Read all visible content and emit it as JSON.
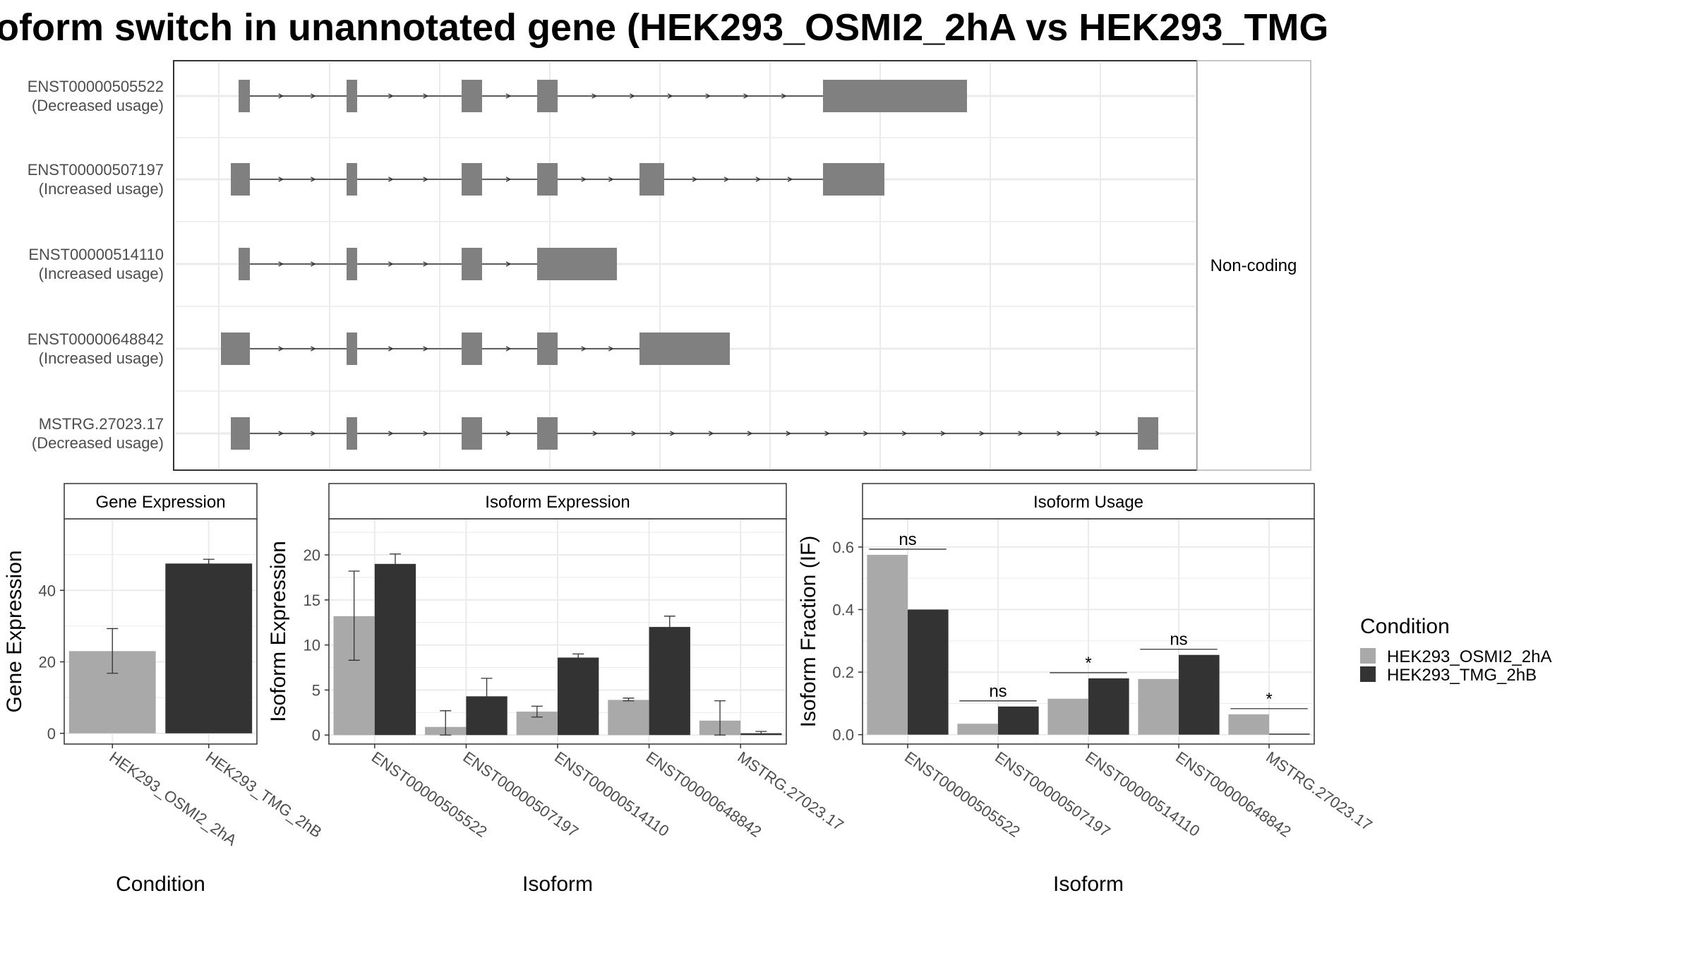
{
  "title": "oform switch in unannotated gene (HEK293_OSMI2_2hA vs HEK293_TMG",
  "colors": {
    "exon": "#808080",
    "cond1": "#a9a9a9",
    "cond2": "#333333",
    "grid": "#ebebeb",
    "strip_bg": "#ffffff"
  },
  "chart_data": [
    {
      "type": "gene-structure",
      "coding_label": "Non-coding",
      "transcripts": [
        {
          "id": "ENST00000505522",
          "usage": "(Decreased usage)"
        },
        {
          "id": "ENST00000507197",
          "usage": "(Increased usage)"
        },
        {
          "id": "ENST00000514110",
          "usage": "(Increased usage)"
        },
        {
          "id": "ENST00000648842",
          "usage": "(Increased usage)"
        },
        {
          "id": "MSTRG.27023.17",
          "usage": "(Decreased usage)"
        }
      ]
    },
    {
      "type": "bar",
      "title": "Gene Expression",
      "xlabel": "Condition",
      "ylabel": "Gene Expression",
      "ylim": [
        -3,
        60
      ],
      "yticks": [
        "0",
        "20",
        "40"
      ],
      "categories": [
        "HEK293_OSMI2_2hA",
        "HEK293_TMG_2hB"
      ],
      "values": [
        23,
        47.5
      ],
      "errors": [
        [
          16.8,
          29.3
        ],
        [
          46.3,
          48.7
        ]
      ]
    },
    {
      "type": "bar",
      "title": "Isoform Expression",
      "xlabel": "Isoform",
      "ylabel": "Isoform Expression",
      "ylim": [
        -1,
        24
      ],
      "yticks": [
        "0",
        "5",
        "10",
        "15",
        "20"
      ],
      "categories": [
        "ENST00000505522",
        "ENST00000507197",
        "ENST00000514110",
        "ENST00000648842",
        "MSTRG.27023.17"
      ],
      "series": [
        {
          "name": "HEK293_OSMI2_2hA",
          "values": [
            13.2,
            0.9,
            2.6,
            3.9,
            1.6
          ],
          "errors": [
            [
              8.3,
              18.2
            ],
            [
              0,
              2.7
            ],
            [
              2.0,
              3.2
            ],
            [
              3.8,
              4.1
            ],
            [
              0,
              3.8
            ]
          ]
        },
        {
          "name": "HEK293_TMG_2hB",
          "values": [
            19.0,
            4.3,
            8.6,
            12.0,
            0.2
          ],
          "errors": [
            [
              17.9,
              20.1
            ],
            [
              2.5,
              6.3
            ],
            [
              8.2,
              9.0
            ],
            [
              10.7,
              13.2
            ],
            [
              0.1,
              0.4
            ]
          ]
        }
      ]
    },
    {
      "type": "bar",
      "title": "Isoform Usage",
      "xlabel": "Isoform",
      "ylabel": "Isoform Fraction (IF)",
      "ylim": [
        -0.03,
        0.69
      ],
      "yticks": [
        "0.0",
        "0.2",
        "0.4",
        "0.6"
      ],
      "categories": [
        "ENST00000505522",
        "ENST00000507197",
        "ENST00000514110",
        "ENST00000648842",
        "MSTRG.27023.17"
      ],
      "series": [
        {
          "name": "HEK293_OSMI2_2hA",
          "values": [
            0.575,
            0.035,
            0.115,
            0.178,
            0.065
          ]
        },
        {
          "name": "HEK293_TMG_2hB",
          "values": [
            0.4,
            0.09,
            0.18,
            0.255,
            0.0
          ]
        }
      ],
      "significance": [
        "ns",
        "ns",
        "*",
        "ns",
        "*"
      ]
    }
  ],
  "legend": {
    "title": "Condition",
    "entries": [
      "HEK293_OSMI2_2hA",
      "HEK293_TMG_2hB"
    ]
  }
}
